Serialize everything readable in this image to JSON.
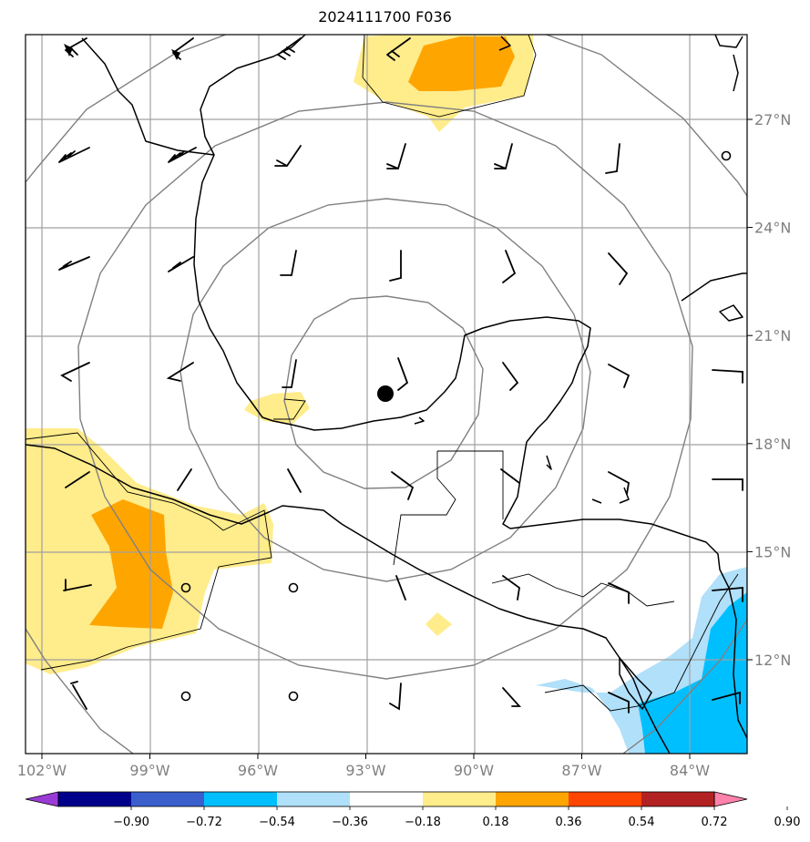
{
  "title": "2024111700 F036",
  "map": {
    "center_marker": {
      "lon": -92.2,
      "lat": 19.4
    },
    "lon_ticks": [
      {
        "value": -102,
        "label": "102°W"
      },
      {
        "value": -99,
        "label": "99°W"
      },
      {
        "value": -96,
        "label": "96°W"
      },
      {
        "value": -93,
        "label": "93°W"
      },
      {
        "value": -90,
        "label": "90°W"
      },
      {
        "value": -87,
        "label": "87°W"
      },
      {
        "value": -84,
        "label": "84°W"
      }
    ],
    "lat_ticks": [
      {
        "value": 27,
        "label": "27°N"
      },
      {
        "value": 24,
        "label": "24°N"
      },
      {
        "value": 21,
        "label": "21°N"
      },
      {
        "value": 18,
        "label": "18°N"
      },
      {
        "value": 15,
        "label": "15°N"
      },
      {
        "value": 12,
        "label": "12°N"
      }
    ]
  },
  "colorbar": {
    "colors": [
      "#9a3bd6",
      "#00008b",
      "#3a5fcd",
      "#00bfff",
      "#b0e0fa",
      "#ffffff",
      "#ffec8b",
      "#ffa500",
      "#ff4500",
      "#b22222",
      "#ff82ab"
    ],
    "labels": [
      "−0.90",
      "−0.72",
      "−0.54",
      "−0.36",
      "−0.18",
      "0.18",
      "0.36",
      "0.54",
      "0.72",
      "0.90"
    ]
  }
}
